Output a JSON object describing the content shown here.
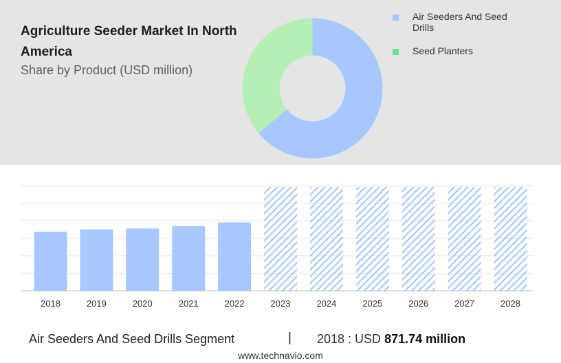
{
  "header": {
    "title": "Agriculture Seeder Market In North America",
    "subtitle": "Share by Product (USD million)"
  },
  "colors": {
    "primary": "#a6c8ff",
    "secondary": "#b3efb5",
    "legend_secondary": "#6ee08a",
    "forecast_hatch": "#a6c8ff",
    "panel": "#e5e5e5"
  },
  "legend": {
    "items": [
      {
        "label": "Air Seeders And Seed Drills"
      },
      {
        "label": "Seed Planters"
      }
    ]
  },
  "chart_data": [
    {
      "type": "pie",
      "title": "Share by Product (USD million)",
      "donut": true,
      "series": [
        {
          "name": "Air Seeders And Seed Drills",
          "value": 64
        },
        {
          "name": "Seed Planters",
          "value": 36
        }
      ]
    },
    {
      "type": "bar",
      "categories": [
        "2018",
        "2019",
        "2020",
        "2021",
        "2022",
        "2023",
        "2024",
        "2025",
        "2026",
        "2027",
        "2028"
      ],
      "values": [
        871.74,
        905,
        918,
        955,
        1008,
        null,
        null,
        null,
        null,
        null,
        null
      ],
      "forecast_from": "2023",
      "ylim": [
        0,
        1550
      ],
      "grid": true
    }
  ],
  "footer": {
    "segment": "Air Seeders And Seed Drills Segment",
    "separator": "|",
    "year_label": "2018 : USD",
    "value": "871.74 million",
    "source": "www.technavio.com"
  }
}
